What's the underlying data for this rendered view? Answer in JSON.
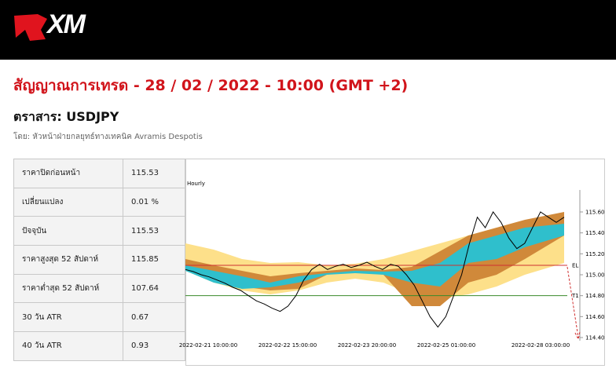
{
  "header": {
    "logo": "XM"
  },
  "title": "สัญญาณการเทรด - 28 / 02 / 2022 - 10:00 (GMT +2)",
  "instrument": "ตราสาร: USDJPY",
  "author": "โดย: หัวหน้าฝ่ายกลยุทธ์ทางเทคนิค Avramis Despotis",
  "table": {
    "rows": [
      [
        "ราคาปิดก่อนหน้า",
        "115.53"
      ],
      [
        "เปลี่ยนแปลง",
        "0.01 %"
      ],
      [
        "ปัจจุบัน",
        "115.53"
      ],
      [
        "ราคาสูงสุด 52 สัปดาห์",
        "115.85"
      ],
      [
        "ราคาต่ำสุด 52 สัปดาห์",
        "107.64"
      ],
      [
        "30 วัน ATR",
        "0.67"
      ],
      [
        "40 วัน ATR",
        "0.93"
      ]
    ]
  },
  "chart_data": {
    "type": "line",
    "title": "Hourly",
    "values": [
      115.05,
      115.03,
      115.0,
      114.98,
      114.95,
      114.92,
      114.88,
      114.85,
      114.8,
      114.75,
      114.72,
      114.68,
      114.65,
      114.7,
      114.8,
      114.95,
      115.05,
      115.1,
      115.05,
      115.08,
      115.1,
      115.07,
      115.09,
      115.12,
      115.08,
      115.05,
      115.1,
      115.08,
      115.0,
      114.9,
      114.75,
      114.6,
      114.5,
      114.6,
      114.8,
      115.0,
      115.3,
      115.55,
      115.45,
      115.6,
      115.5,
      115.35,
      115.25,
      115.3,
      115.45,
      115.6,
      115.55,
      115.5,
      115.55
    ],
    "color": "#000000",
    "ylim": [
      114.385,
      115.825
    ],
    "yticks": [
      {
        "value": 115.6,
        "label": "115.60"
      },
      {
        "value": 115.4,
        "label": "115.40"
      },
      {
        "value": 115.2,
        "label": "115.20"
      },
      {
        "value": 115.0,
        "label": "115.00"
      },
      {
        "value": 114.8,
        "label": "114.80"
      },
      {
        "value": 114.6,
        "label": "114.60"
      },
      {
        "value": 114.4,
        "label": "114.40"
      }
    ],
    "xtick_labels": [
      "2022-02-21 10:00:00",
      "2022-02-22 15:00:00",
      "2022-02-23 20:00:00",
      "2022-02-25 01:00:00",
      "2022-02-28 03:00:00"
    ],
    "levels": [
      {
        "label": "EL",
        "value": 115.09,
        "color": "#d03030"
      },
      {
        "label": "T1",
        "value": 114.8,
        "color": "#3a8a2a"
      }
    ]
  }
}
